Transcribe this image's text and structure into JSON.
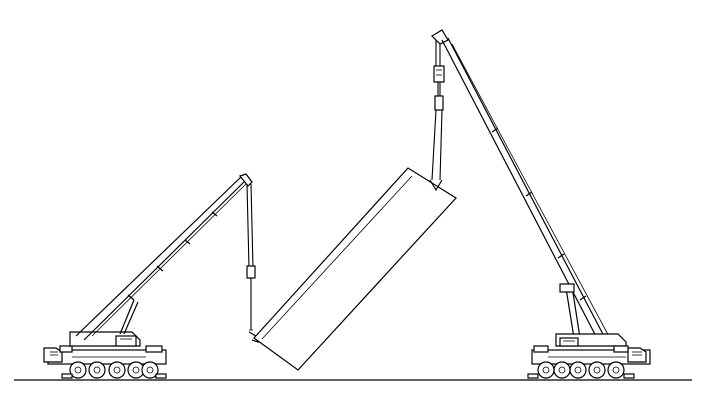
{
  "diagram": {
    "background_color": "#ffffff",
    "line_color": "#000000",
    "components": [
      "ground-line",
      "left-crane",
      "right-crane",
      "suspended-load",
      "left-hoist-rope",
      "right-hoist-rope"
    ]
  }
}
